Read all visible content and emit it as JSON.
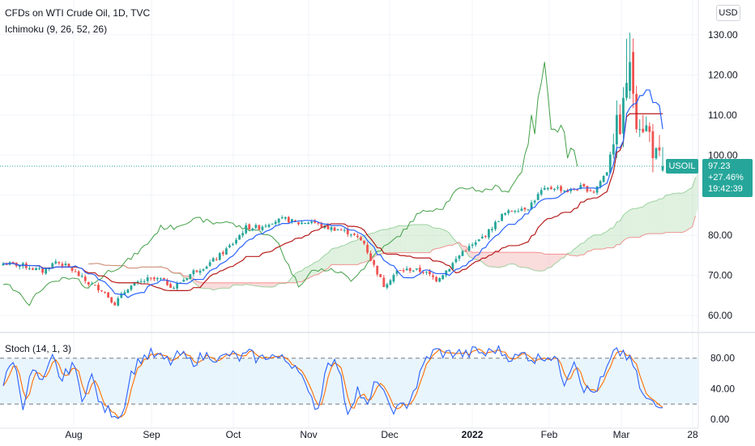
{
  "header": {
    "title": "CFDs on WTI Crude Oil, 1D, TVC",
    "indicator": "Ichimoku (9, 26, 52, 26)",
    "oscillator": "Stoch (14, 1, 3)",
    "currency": "USD"
  },
  "price_tag": {
    "symbol": "USOIL",
    "last": "97.23",
    "change": "+27.46%",
    "countdown": "19:42:39"
  },
  "colors": {
    "up": "#26a69a",
    "down": "#ef5350",
    "conversion": "#2962ff",
    "base": "#b71c1c",
    "lagging": "#43a047",
    "cloud_bull": "#a5d6a7",
    "cloud_bear": "#ef9a9a",
    "stoch_k": "#2962ff",
    "stoch_d": "#ff6d00",
    "stoch_band": "#e3f2fd"
  },
  "chart_data": {
    "type": "candlestick",
    "price_axis": {
      "ylim": [
        57,
        133
      ],
      "ticks": [
        60,
        70,
        80,
        90,
        100,
        110,
        120,
        130
      ],
      "tick_labels": [
        "60.00",
        "70.00",
        "80.00",
        "",
        "100.00",
        "110.00",
        "120.00",
        "130.00"
      ]
    },
    "stoch_axis": {
      "ylim": [
        -3,
        103
      ],
      "ticks": [
        0,
        40,
        80
      ],
      "tick_labels": [
        "0.00",
        "40.00",
        "80.00"
      ],
      "bands": [
        20,
        80
      ]
    },
    "time_axis": {
      "labels": [
        "Aug",
        "Sep",
        "Oct",
        "Nov",
        "Dec",
        "2022",
        "Feb",
        "Mar",
        "28"
      ],
      "bold": [
        "2022"
      ]
    },
    "price_anchors": [
      [
        0,
        73
      ],
      [
        6,
        72.5
      ],
      [
        12,
        71
      ],
      [
        16,
        73.5
      ],
      [
        20,
        72
      ],
      [
        26,
        68
      ],
      [
        30,
        66.5
      ],
      [
        34,
        63
      ],
      [
        38,
        67
      ],
      [
        44,
        69
      ],
      [
        48,
        69
      ],
      [
        52,
        67
      ],
      [
        58,
        71
      ],
      [
        62,
        72.5
      ],
      [
        66,
        75
      ],
      [
        70,
        78
      ],
      [
        74,
        82
      ],
      [
        78,
        82
      ],
      [
        82,
        83.5
      ],
      [
        86,
        84
      ],
      [
        90,
        83
      ],
      [
        94,
        83.5
      ],
      [
        98,
        82
      ],
      [
        102,
        81.5
      ],
      [
        106,
        80.5
      ],
      [
        110,
        78
      ],
      [
        112,
        74
      ],
      [
        116,
        67.5
      ],
      [
        120,
        71
      ],
      [
        124,
        71.5
      ],
      [
        128,
        71
      ],
      [
        132,
        69
      ],
      [
        136,
        72
      ],
      [
        140,
        76
      ],
      [
        144,
        78
      ],
      [
        148,
        81
      ],
      [
        152,
        85
      ],
      [
        156,
        86.5
      ],
      [
        160,
        87
      ],
      [
        164,
        91
      ],
      [
        168,
        92
      ],
      [
        172,
        91
      ],
      [
        176,
        92
      ],
      [
        180,
        91
      ],
      [
        184,
        96
      ],
      [
        186,
        105
      ],
      [
        188,
        108
      ],
      [
        190,
        115
      ],
      [
        191,
        123
      ],
      [
        193,
        110
      ],
      [
        195,
        108
      ],
      [
        197,
        105
      ],
      [
        199,
        99
      ],
      [
        201,
        97.23
      ]
    ],
    "stoch_anchors": [
      [
        0,
        45
      ],
      [
        3,
        80
      ],
      [
        6,
        20
      ],
      [
        9,
        65
      ],
      [
        12,
        45
      ],
      [
        15,
        80
      ],
      [
        18,
        50
      ],
      [
        21,
        75
      ],
      [
        24,
        30
      ],
      [
        27,
        55
      ],
      [
        30,
        15
      ],
      [
        33,
        10
      ],
      [
        36,
        5
      ],
      [
        39,
        60
      ],
      [
        42,
        80
      ],
      [
        45,
        85
      ],
      [
        48,
        80
      ],
      [
        51,
        75
      ],
      [
        54,
        85
      ],
      [
        57,
        75
      ],
      [
        60,
        80
      ],
      [
        63,
        85
      ],
      [
        66,
        78
      ],
      [
        69,
        85
      ],
      [
        72,
        80
      ],
      [
        75,
        85
      ],
      [
        78,
        78
      ],
      [
        81,
        85
      ],
      [
        84,
        80
      ],
      [
        87,
        75
      ],
      [
        90,
        70
      ],
      [
        93,
        30
      ],
      [
        96,
        15
      ],
      [
        99,
        80
      ],
      [
        102,
        70
      ],
      [
        105,
        10
      ],
      [
        108,
        40
      ],
      [
        111,
        15
      ],
      [
        114,
        55
      ],
      [
        117,
        20
      ],
      [
        120,
        12
      ],
      [
        123,
        20
      ],
      [
        126,
        45
      ],
      [
        129,
        80
      ],
      [
        132,
        90
      ],
      [
        135,
        85
      ],
      [
        138,
        88
      ],
      [
        141,
        84
      ],
      [
        144,
        90
      ],
      [
        147,
        85
      ],
      [
        150,
        92
      ],
      [
        153,
        85
      ],
      [
        156,
        80
      ],
      [
        159,
        86
      ],
      [
        162,
        78
      ],
      [
        165,
        84
      ],
      [
        168,
        82
      ],
      [
        171,
        50
      ],
      [
        174,
        80
      ],
      [
        177,
        40
      ],
      [
        180,
        35
      ],
      [
        183,
        55
      ],
      [
        186,
        85
      ],
      [
        189,
        88
      ],
      [
        192,
        70
      ],
      [
        195,
        30
      ],
      [
        198,
        20
      ],
      [
        200,
        15
      ],
      [
        201,
        22
      ]
    ]
  }
}
